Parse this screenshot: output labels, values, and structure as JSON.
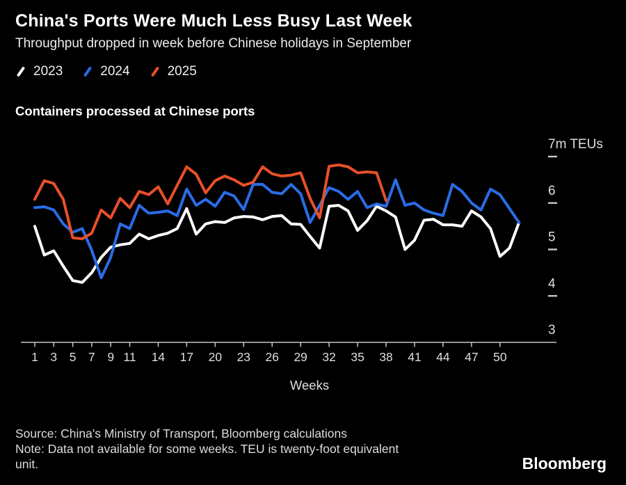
{
  "header": {
    "title": "China's Ports Were Much Less Busy Last Week",
    "subtitle": "Throughput dropped in week before Chinese holidays in September"
  },
  "legend": [
    {
      "label": "2023",
      "color": "#ffffff"
    },
    {
      "label": "2024",
      "color": "#2a6ce6"
    },
    {
      "label": "2025",
      "color": "#e8502a"
    }
  ],
  "chart_label": "Containers processed at Chinese ports",
  "chart_data": {
    "type": "line",
    "title": "Containers processed at Chinese ports",
    "x_label": "Weeks",
    "x_range": [
      1,
      52
    ],
    "y_range": [
      3,
      7
    ],
    "y_unit": "m TEUs",
    "grid": false,
    "legend_position": "top-left",
    "x_ticks": [
      1,
      3,
      5,
      7,
      9,
      11,
      14,
      17,
      20,
      23,
      26,
      29,
      32,
      35,
      38,
      41,
      44,
      47,
      50
    ],
    "y_ticks": [
      3,
      4,
      5,
      6,
      7
    ],
    "y_tick_labels": [
      "3",
      "4",
      "5",
      "6",
      "7m TEUs"
    ],
    "series": [
      {
        "name": "2023",
        "color": "#ffffff",
        "start_week": 1,
        "values": [
          5.5,
          4.88,
          4.97,
          4.64,
          4.33,
          4.29,
          4.5,
          4.83,
          5.05,
          5.1,
          5.13,
          5.33,
          5.23,
          5.3,
          5.35,
          5.45,
          5.88,
          5.33,
          5.55,
          5.6,
          5.58,
          5.68,
          5.71,
          5.7,
          5.64,
          5.71,
          5.73,
          5.55,
          5.54,
          5.28,
          5.03,
          5.93,
          5.95,
          5.83,
          5.41,
          5.62,
          5.93,
          5.83,
          5.7,
          5.0,
          5.2,
          5.63,
          5.65,
          5.53,
          5.53,
          5.5,
          5.83,
          5.7,
          5.45,
          4.85,
          5.03,
          5.58
        ]
      },
      {
        "name": "2024",
        "color": "#2a6ce6",
        "start_week": 1,
        "values": [
          5.9,
          5.92,
          5.85,
          5.55,
          5.37,
          5.45,
          4.98,
          4.39,
          4.83,
          5.55,
          5.45,
          5.95,
          5.78,
          5.8,
          5.83,
          5.73,
          6.3,
          5.95,
          6.08,
          5.93,
          6.23,
          6.15,
          5.86,
          6.4,
          6.4,
          6.23,
          6.2,
          6.4,
          6.2,
          5.58,
          5.95,
          6.33,
          6.25,
          6.08,
          6.25,
          5.9,
          5.98,
          5.93,
          6.5,
          5.95,
          6.0,
          5.85,
          5.78,
          5.73,
          6.4,
          6.25,
          6.0,
          5.85,
          6.3,
          6.18,
          5.88,
          5.58
        ]
      },
      {
        "name": "2025",
        "color": "#e8502a",
        "start_week": 1,
        "values": [
          6.08,
          6.48,
          6.42,
          6.08,
          5.25,
          5.23,
          5.35,
          5.85,
          5.68,
          6.1,
          5.9,
          6.25,
          6.18,
          6.35,
          5.98,
          6.38,
          6.78,
          6.62,
          6.22,
          6.48,
          6.58,
          6.5,
          6.38,
          6.45,
          6.78,
          6.63,
          6.58,
          6.6,
          6.65,
          6.1,
          5.68,
          6.79,
          6.82,
          6.78,
          6.65,
          6.67,
          6.65,
          6.05
        ]
      }
    ]
  },
  "footer": {
    "source_line": "Source: China's Ministry of Transport, Bloomberg calculations",
    "note_line": "Note: Data not available for some weeks. TEU is twenty-foot equivalent unit.",
    "logo": "Bloomberg"
  }
}
